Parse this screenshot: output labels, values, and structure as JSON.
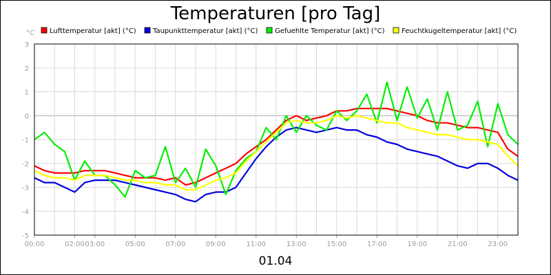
{
  "chart_data": {
    "type": "line",
    "title": "Temperaturen [pro Tag]",
    "unit_label": "°C",
    "date_label": "01.04",
    "ylim": [
      -5,
      3
    ],
    "yticks": [
      "-5",
      "-4",
      "-3",
      "-2",
      "-1",
      "0",
      "1",
      "2",
      "3"
    ],
    "xlim": [
      0,
      24
    ],
    "xticks": [
      {
        "label": "00:00",
        "hour": 0
      },
      {
        "label": "02:00",
        "hour": 2
      },
      {
        "label": "03:00",
        "hour": 3
      },
      {
        "label": "05:00",
        "hour": 5
      },
      {
        "label": "07:00",
        "hour": 7
      },
      {
        "label": "09:00",
        "hour": 9
      },
      {
        "label": "11:00",
        "hour": 11
      },
      {
        "label": "13:00",
        "hour": 13
      },
      {
        "label": "15:00",
        "hour": 15
      },
      {
        "label": "17:00",
        "hour": 17
      },
      {
        "label": "19:00",
        "hour": 19
      },
      {
        "label": "21:00",
        "hour": 21
      },
      {
        "label": "23:00",
        "hour": 23
      }
    ],
    "grid": true,
    "legend": "top",
    "x": [
      0,
      0.5,
      1,
      1.5,
      2,
      2.5,
      3,
      3.5,
      4,
      4.5,
      5,
      5.5,
      6,
      6.5,
      7,
      7.5,
      8,
      8.5,
      9,
      9.5,
      10,
      10.5,
      11,
      11.5,
      12,
      12.5,
      13,
      13.5,
      14,
      14.5,
      15,
      15.5,
      16,
      16.5,
      17,
      17.5,
      18,
      18.5,
      19,
      19.5,
      20,
      20.5,
      21,
      21.5,
      22,
      22.5,
      23,
      23.5,
      24
    ],
    "series": [
      {
        "name": "Lufttemperatur [akt] (°C)",
        "color": "#ff0000",
        "values": [
          -2.1,
          -2.3,
          -2.4,
          -2.4,
          -2.4,
          -2.3,
          -2.3,
          -2.3,
          -2.4,
          -2.5,
          -2.6,
          -2.6,
          -2.6,
          -2.7,
          -2.6,
          -2.9,
          -2.8,
          -2.6,
          -2.4,
          -2.2,
          -2.0,
          -1.6,
          -1.3,
          -1.0,
          -0.6,
          -0.2,
          0.0,
          -0.2,
          -0.1,
          0.0,
          0.2,
          0.2,
          0.3,
          0.3,
          0.3,
          0.3,
          0.2,
          0.1,
          0.0,
          -0.2,
          -0.3,
          -0.3,
          -0.4,
          -0.5,
          -0.5,
          -0.6,
          -0.7,
          -1.4,
          -1.7
        ]
      },
      {
        "name": "Taupunkttemperatur [akt] (°C)",
        "color": "#0000dd",
        "values": [
          -2.6,
          -2.8,
          -2.8,
          -3.0,
          -3.2,
          -2.8,
          -2.7,
          -2.7,
          -2.7,
          -2.8,
          -2.9,
          -3.0,
          -3.1,
          -3.2,
          -3.3,
          -3.5,
          -3.6,
          -3.3,
          -3.2,
          -3.2,
          -3.0,
          -2.4,
          -1.8,
          -1.3,
          -0.9,
          -0.6,
          -0.5,
          -0.6,
          -0.7,
          -0.6,
          -0.5,
          -0.6,
          -0.6,
          -0.8,
          -0.9,
          -1.1,
          -1.2,
          -1.4,
          -1.5,
          -1.6,
          -1.7,
          -1.9,
          -2.1,
          -2.2,
          -2.0,
          -2.0,
          -2.2,
          -2.5,
          -2.7
        ]
      },
      {
        "name": "Gefuehlte Temperatur [akt] (°C)",
        "color": "#00ee00",
        "values": [
          -1.0,
          -0.7,
          -1.2,
          -1.5,
          -2.7,
          -1.9,
          -2.5,
          -2.5,
          -2.9,
          -3.4,
          -2.3,
          -2.6,
          -2.5,
          -1.3,
          -2.8,
          -2.2,
          -3.0,
          -1.4,
          -2.1,
          -3.3,
          -2.3,
          -1.8,
          -1.5,
          -0.5,
          -1.0,
          0.0,
          -0.7,
          0.0,
          -0.4,
          -0.6,
          0.2,
          -0.2,
          0.2,
          0.9,
          -0.3,
          1.4,
          -0.2,
          1.2,
          -0.1,
          0.7,
          -0.6,
          1.0,
          -0.6,
          -0.4,
          0.6,
          -1.3,
          0.5,
          -0.8,
          -1.2
        ]
      },
      {
        "name": "Feuchtkugeltemperatur [akt] (°C)",
        "color": "#ffff00",
        "values": [
          -2.3,
          -2.5,
          -2.6,
          -2.6,
          -2.7,
          -2.5,
          -2.5,
          -2.5,
          -2.6,
          -2.7,
          -2.7,
          -2.8,
          -2.8,
          -2.9,
          -2.9,
          -3.1,
          -3.1,
          -2.9,
          -2.7,
          -2.6,
          -2.4,
          -1.9,
          -1.5,
          -1.1,
          -0.7,
          -0.3,
          -0.2,
          -0.3,
          -0.3,
          -0.2,
          0.0,
          -0.1,
          0.0,
          -0.1,
          -0.2,
          -0.3,
          -0.3,
          -0.5,
          -0.6,
          -0.7,
          -0.8,
          -0.8,
          -0.9,
          -1.0,
          -1.0,
          -1.1,
          -1.2,
          -1.7,
          -2.1
        ]
      }
    ]
  }
}
